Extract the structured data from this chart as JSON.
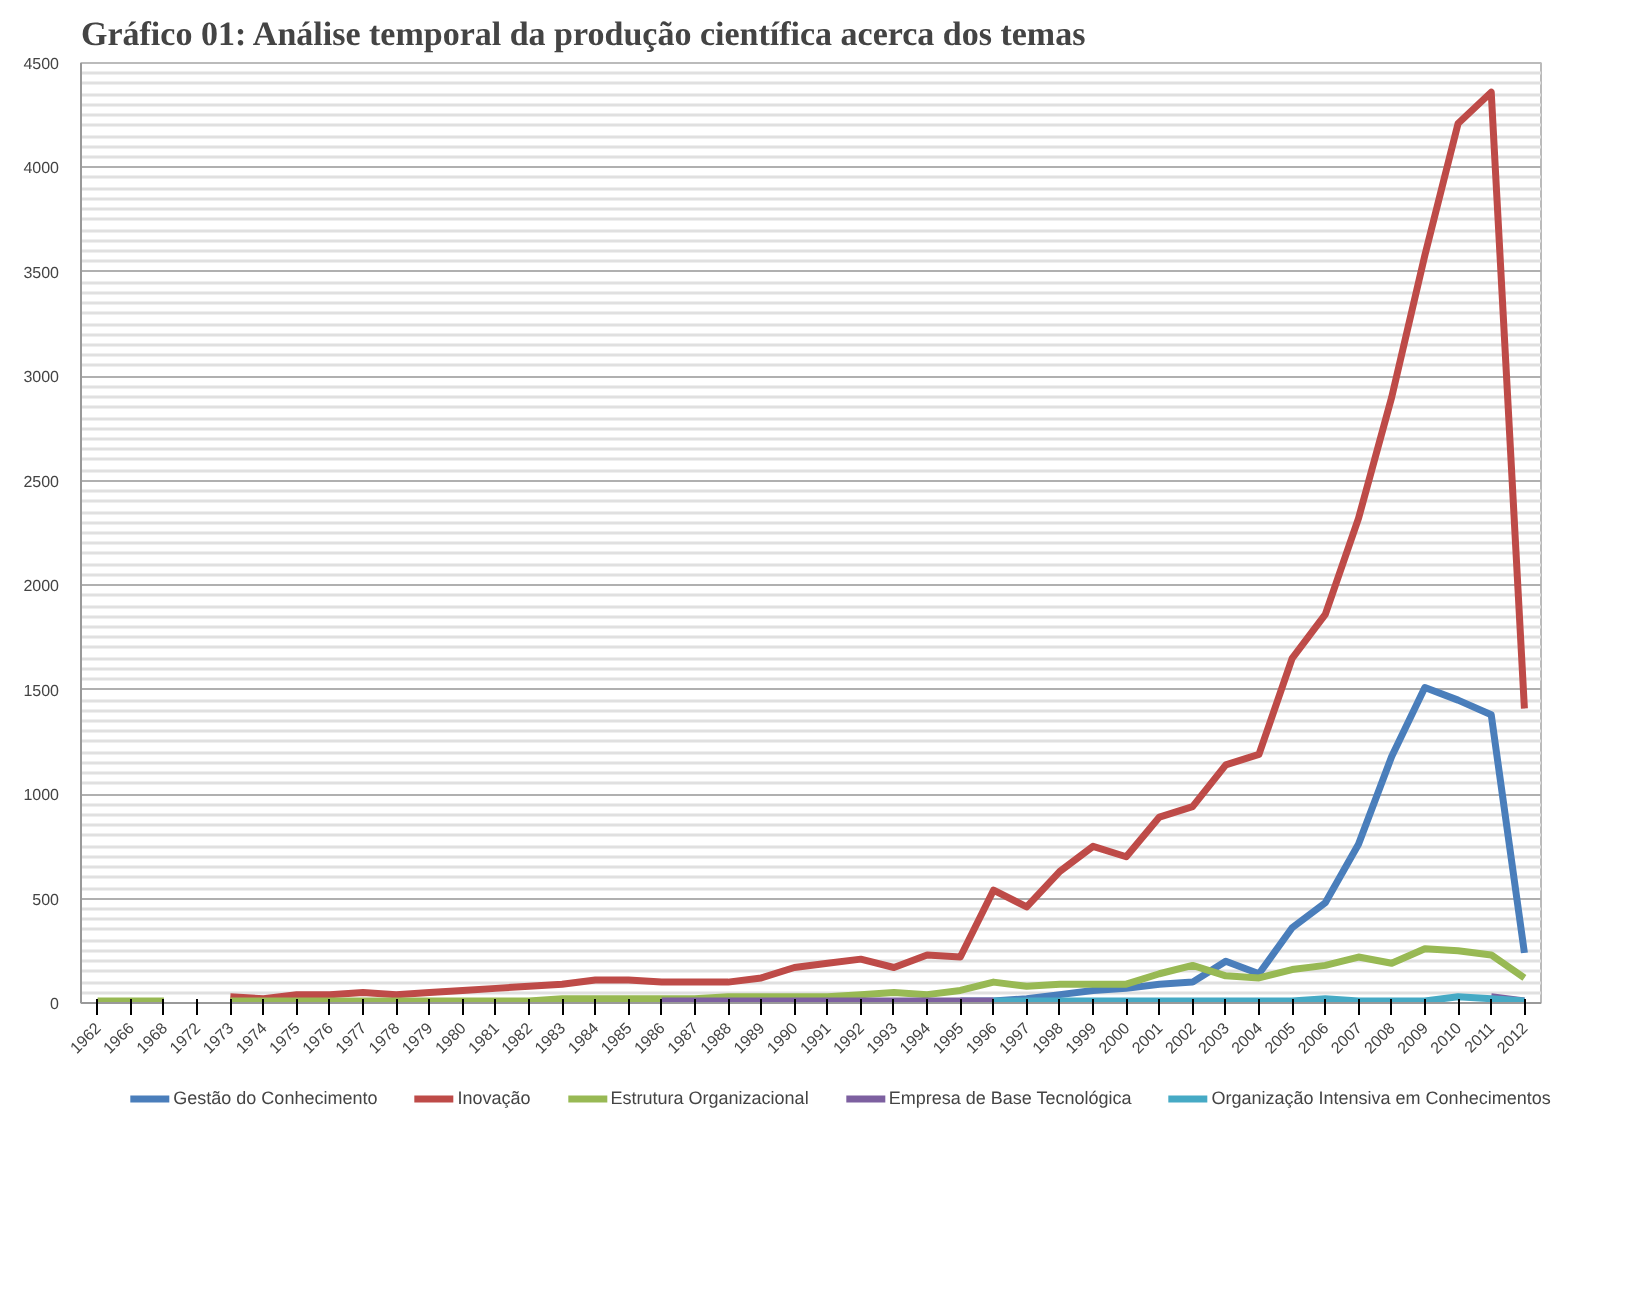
{
  "chart_data": {
    "type": "line",
    "title": "Gráfico 01: Análise temporal da produção científica acerca dos temas",
    "categories": [
      "1962",
      "1966",
      "1968",
      "1972",
      "1973",
      "1974",
      "1975",
      "1976",
      "1977",
      "1978",
      "1979",
      "1980",
      "1981",
      "1982",
      "1983",
      "1984",
      "1985",
      "1986",
      "1987",
      "1988",
      "1989",
      "1990",
      "1991",
      "1992",
      "1993",
      "1994",
      "1995",
      "1996",
      "1997",
      "1998",
      "1999",
      "2000",
      "2001",
      "2002",
      "2003",
      "2004",
      "2005",
      "2006",
      "2007",
      "2008",
      "2009",
      "2010",
      "2011",
      "2012"
    ],
    "series": [
      {
        "name": "Gestão do Conhecimento",
        "color": "#4a7ebb",
        "values": [
          null,
          null,
          null,
          null,
          null,
          null,
          null,
          null,
          null,
          null,
          null,
          null,
          null,
          null,
          null,
          null,
          null,
          null,
          null,
          null,
          null,
          null,
          null,
          null,
          null,
          null,
          10,
          10,
          20,
          40,
          60,
          70,
          90,
          100,
          200,
          140,
          360,
          480,
          760,
          1180,
          1510,
          1450,
          1380,
          240
        ]
      },
      {
        "name": "Inovação",
        "color": "#be4b48",
        "values": [
          null,
          null,
          null,
          null,
          30,
          20,
          40,
          40,
          50,
          40,
          50,
          60,
          70,
          80,
          90,
          110,
          110,
          100,
          100,
          100,
          120,
          170,
          190,
          210,
          170,
          230,
          220,
          540,
          460,
          630,
          750,
          700,
          890,
          940,
          1140,
          1190,
          1650,
          1860,
          2320,
          2900,
          3580,
          4210,
          4360,
          1410
        ]
      },
      {
        "name": "Estrutura Organizacional",
        "color": "#98b954",
        "values": [
          10,
          10,
          10,
          null,
          10,
          10,
          10,
          10,
          10,
          10,
          10,
          10,
          10,
          10,
          20,
          20,
          20,
          20,
          20,
          30,
          30,
          30,
          30,
          40,
          50,
          40,
          60,
          100,
          80,
          90,
          90,
          90,
          140,
          180,
          130,
          120,
          160,
          180,
          220,
          190,
          260,
          250,
          230,
          120
        ]
      },
      {
        "name": "Empresa de Base Tecnológica",
        "color": "#7d60a0",
        "values": [
          null,
          null,
          null,
          null,
          null,
          null,
          null,
          null,
          null,
          null,
          null,
          null,
          null,
          null,
          null,
          null,
          null,
          10,
          10,
          10,
          10,
          10,
          10,
          10,
          10,
          10,
          10,
          10,
          null,
          null,
          null,
          null,
          null,
          null,
          null,
          null,
          null,
          null,
          null,
          null,
          null,
          null,
          30,
          10
        ]
      },
      {
        "name": "Organização Intensiva em Conhecimentos",
        "color": "#46aac5",
        "values": [
          null,
          null,
          null,
          null,
          null,
          null,
          null,
          null,
          null,
          null,
          null,
          null,
          null,
          null,
          null,
          null,
          null,
          null,
          null,
          null,
          null,
          null,
          null,
          null,
          null,
          null,
          null,
          10,
          10,
          10,
          10,
          10,
          10,
          10,
          10,
          10,
          10,
          20,
          10,
          10,
          10,
          30,
          20,
          10
        ]
      }
    ],
    "ylim": [
      0,
      4500
    ],
    "yticks": [
      0,
      500,
      1000,
      1500,
      2000,
      2500,
      3000,
      3500,
      4000,
      4500
    ],
    "grid": "y",
    "legend": "bottom",
    "marker": "none",
    "line_style": "solid"
  }
}
